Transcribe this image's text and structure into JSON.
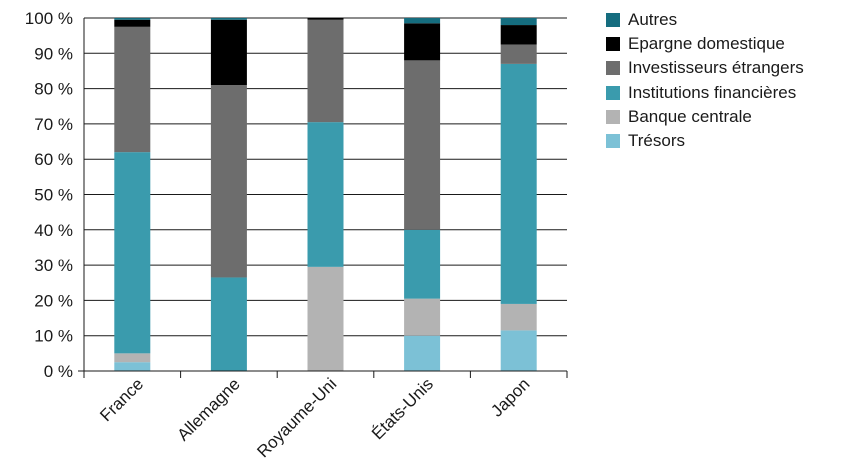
{
  "chart_data": {
    "type": "bar",
    "stacked": true,
    "categories": [
      "France",
      "Allemagne",
      "Royaume-Uni",
      "États-Unis",
      "Japon"
    ],
    "ylim": [
      0,
      100
    ],
    "yticks": [
      "0 %",
      "10 %",
      "20 %",
      "30 %",
      "40 %",
      "50 %",
      "60 %",
      "70 %",
      "80 %",
      "90 %",
      "100 %"
    ],
    "grid": true,
    "legend_position": "right",
    "series": [
      {
        "name": "Trésors",
        "color": "#7cc1d6",
        "values": [
          2.5,
          0,
          0,
          10,
          11.5
        ]
      },
      {
        "name": "Banque centrale",
        "color": "#b3b3b3",
        "values": [
          2.5,
          0,
          29.5,
          10.5,
          7.5
        ]
      },
      {
        "name": "Institutions financières",
        "color": "#3a9bad",
        "values": [
          57,
          26.5,
          41,
          19.5,
          68
        ]
      },
      {
        "name": "Investisseurs étrangers",
        "color": "#6d6d6d",
        "values": [
          35.5,
          54.5,
          29,
          48,
          5.5
        ]
      },
      {
        "name": "Epargne domestique",
        "color": "#000000",
        "values": [
          2,
          18.5,
          0.5,
          10.5,
          5.5
        ]
      },
      {
        "name": "Autres",
        "color": "#156d7f",
        "values": [
          0.5,
          0.5,
          0,
          1.5,
          2
        ]
      }
    ]
  }
}
